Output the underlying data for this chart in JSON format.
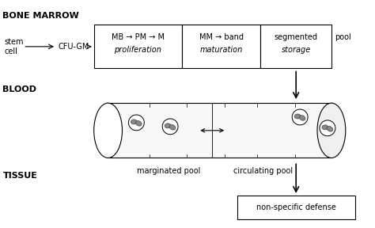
{
  "bg_color": "#ffffff",
  "title_color": "#000000",
  "bone_marrow_label": "BONE MARROW",
  "blood_label": "BLOOD",
  "tissue_label": "TISSUE",
  "stem_cell_text": "stem\ncell",
  "cfu_gm_text": "CFU-GM",
  "box1_line1": "MB → PM → M",
  "box1_line2": "proliferation",
  "box2_line1": "MM → band",
  "box2_line2": "maturation",
  "box3_line1": "segmented",
  "box3_line2": "storage",
  "pool_text": "pool",
  "marginated_pool": "marginated pool",
  "circulating_pool": "circulating pool",
  "non_specific": "non-specific defense"
}
